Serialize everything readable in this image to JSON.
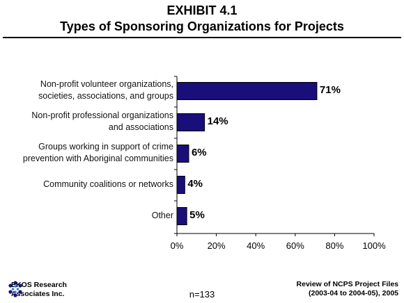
{
  "title_line1": "EXHIBIT 4.1",
  "title_line2": "Types of Sponsoring Organizations for Projects",
  "chart_data": {
    "type": "bar",
    "orientation": "horizontal",
    "categories": [
      [
        "Non-profit volunteer organizations,",
        "societies, associations, and groups"
      ],
      [
        "Non-profit professional organizations",
        "and associations"
      ],
      [
        "Groups working in support of crime",
        "prevention with Aboriginal communities"
      ],
      [
        "Community coalitions or networks"
      ],
      [
        "Other"
      ]
    ],
    "values": [
      71,
      14,
      6,
      4,
      5
    ],
    "value_labels": [
      "71%",
      "14%",
      "6%",
      "4%",
      "5%"
    ],
    "xlim": [
      0,
      100
    ],
    "x_ticks": [
      "0%",
      "20%",
      "40%",
      "60%",
      "80%",
      "100%"
    ],
    "bar_color": "#1a0f7a",
    "grid": false
  },
  "footer": {
    "org_line1": "EKOS Research",
    "org_line2": "Associates Inc.",
    "sample": "n=133",
    "source_line1": "Review of NCPS Project Files",
    "source_line2": "(2003-04 to 2004-05), 2005"
  }
}
